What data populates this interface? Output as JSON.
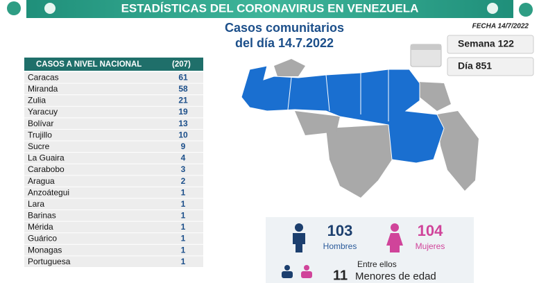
{
  "header": {
    "title": "ESTADÍSTICAS DEL CORONAVIRUS EN VENEZUELA",
    "subtitle_line1": "Casos comunitarios",
    "subtitle_line2": "del día 14.7.2022",
    "date": "FECHA 14/7/2022",
    "week": "Semana 122",
    "day": "Día 851"
  },
  "table": {
    "title": "CASOS A NIVEL NACIONAL",
    "total": "(207)",
    "rows": [
      [
        "Caracas",
        61
      ],
      [
        "Miranda",
        58
      ],
      [
        "Zulia",
        21
      ],
      [
        "Yaracuy",
        19
      ],
      [
        "Bolívar",
        13
      ],
      [
        "Trujillo",
        10
      ],
      [
        "Sucre",
        9
      ],
      [
        "La Guaira",
        4
      ],
      [
        "Carabobo",
        3
      ],
      [
        "Aragua",
        2
      ],
      [
        "Anzoátegui",
        1
      ],
      [
        "Lara",
        1
      ],
      [
        "Barinas",
        1
      ],
      [
        "Mérida",
        1
      ],
      [
        "Guárico",
        1
      ],
      [
        "Monagas",
        1
      ],
      [
        "Portuguesa",
        1
      ]
    ]
  },
  "summary": {
    "men": 103,
    "men_label": "Hombres",
    "women": 104,
    "women_label": "Mujeres",
    "minors_intro": "Entre ellos",
    "minors": 11,
    "minors_label": "Menores de edad"
  }
}
